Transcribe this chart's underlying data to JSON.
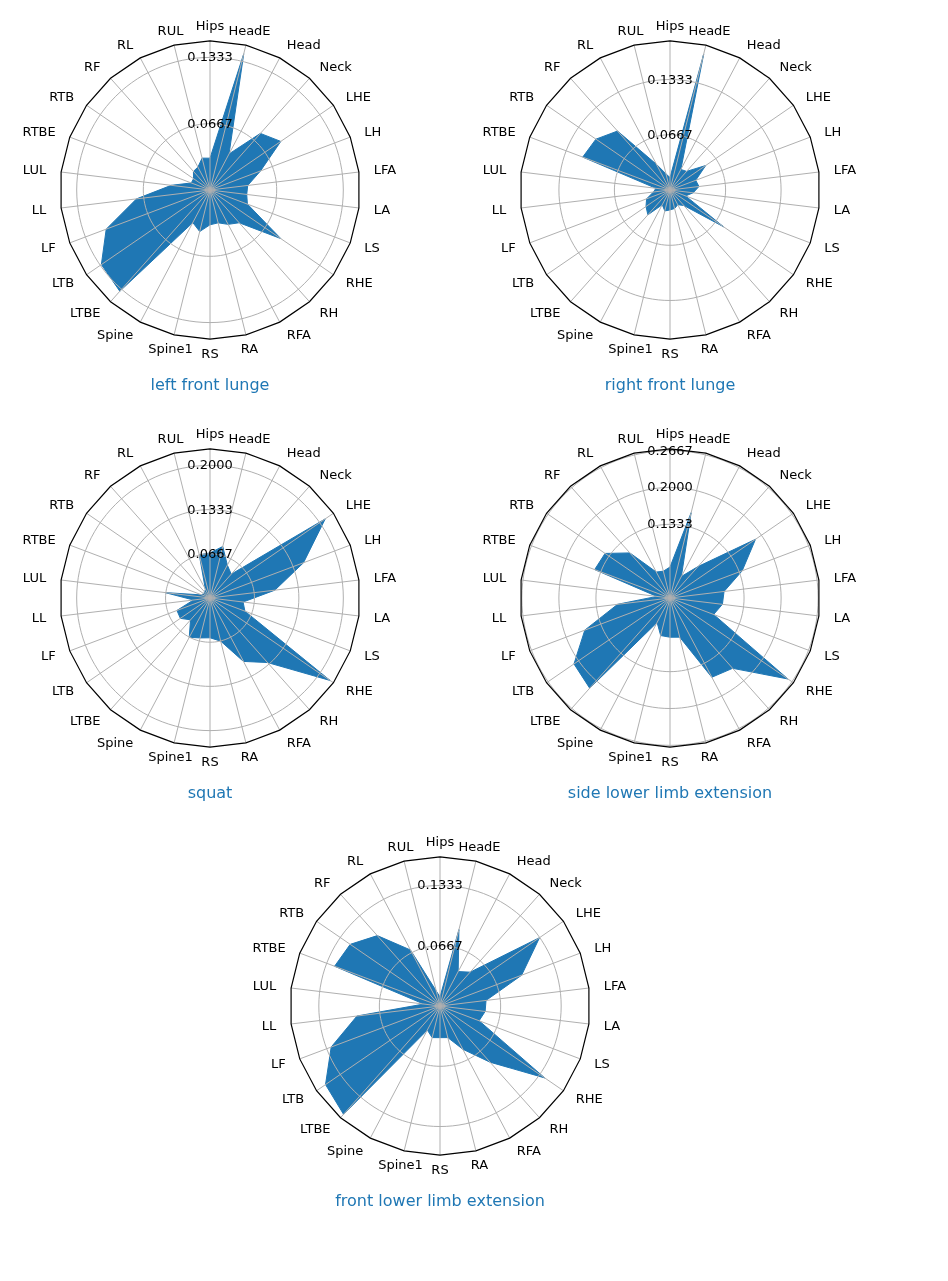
{
  "chart_data": [
    {
      "type": "radar",
      "title": "left front lunge",
      "categories": [
        "Hips",
        "HeadE",
        "Head",
        "Neck",
        "LHE",
        "LH",
        "LFA",
        "LA",
        "LS",
        "RHE",
        "RH",
        "RFA",
        "RA",
        "RS",
        "Spine1",
        "Spine",
        "LTBE",
        "LTB",
        "LF",
        "LL",
        "LUL",
        "RTBE",
        "RTB",
        "RF",
        "RL",
        "RUL"
      ],
      "series": [
        {
          "color": "#1f77b4",
          "values": [
            0.032,
            0.141,
            0.041,
            0.076,
            0.086,
            0.054,
            0.038,
            0.037,
            0.04,
            0.086,
            0.044,
            0.039,
            0.034,
            0.035,
            0.043,
            0.037,
            0.136,
            0.132,
            0.111,
            0.074,
            0.039,
            0.02,
            0.02,
            0.025,
            0.026,
            0.033
          ]
        }
      ],
      "ylim": [
        0,
        0.15
      ],
      "yticks": [
        0.0667,
        0.1333
      ],
      "grid": true
    },
    {
      "type": "radar",
      "title": "right front lunge",
      "categories": [
        "Hips",
        "HeadE",
        "Head",
        "Neck",
        "LHE",
        "LH",
        "LFA",
        "LA",
        "LS",
        "RHE",
        "RH",
        "RFA",
        "RA",
        "RS",
        "Spine1",
        "Spine",
        "LTBE",
        "LTB",
        "LF",
        "LL",
        "LUL",
        "RTBE",
        "RTB",
        "RF",
        "RL",
        "RUL"
      ],
      "series": [
        {
          "color": "#1f77b4",
          "values": [
            0.015,
            0.169,
            0.028,
            0.03,
            0.052,
            0.033,
            0.035,
            0.028,
            0.02,
            0.078,
            0.025,
            0.02,
            0.023,
            0.024,
            0.026,
            0.02,
            0.04,
            0.035,
            0.03,
            0.02,
            0.017,
            0.112,
            0.108,
            0.095,
            0.035,
            0.02
          ]
        }
      ],
      "ylim": [
        0,
        0.18
      ],
      "yticks": [
        0.0667,
        0.1333
      ],
      "grid": true
    },
    {
      "type": "radar",
      "title": "squat",
      "categories": [
        "Hips",
        "HeadE",
        "Head",
        "Neck",
        "LHE",
        "LH",
        "LFA",
        "LA",
        "LS",
        "RHE",
        "RH",
        "RFA",
        "RA",
        "RS",
        "Spine1",
        "Spine",
        "LTBE",
        "LTB",
        "LF",
        "LL",
        "LUL",
        "RTBE",
        "RTB",
        "RF",
        "RL",
        "RUL"
      ],
      "series": [
        {
          "color": "#1f77b4",
          "values": [
            0.068,
            0.08,
            0.056,
            0.048,
            0.21,
            0.15,
            0.098,
            0.05,
            0.056,
            0.219,
            0.13,
            0.108,
            0.067,
            0.06,
            0.062,
            0.067,
            0.044,
            0.054,
            0.053,
            0.025,
            0.068,
            0.013,
            0.012,
            0.012,
            0.015,
            0.067
          ]
        }
      ],
      "ylim": [
        0,
        0.225
      ],
      "yticks": [
        0.0667,
        0.1333,
        {
          "value": 0.2,
          "label": "0.2000"
        }
      ],
      "grid": true
    },
    {
      "type": "radar",
      "title": "side lower limb extension",
      "categories": [
        "Hips",
        "HeadE",
        "Head",
        "Neck",
        "LHE",
        "LH",
        "LFA",
        "LA",
        "LS",
        "RHE",
        "RH",
        "RFA",
        "RA",
        "RS",
        "Spine1",
        "Spine",
        "LTBE",
        "LTB",
        "LF",
        "LL",
        "LUL",
        "RTBE",
        "RTB",
        "RF",
        "RL",
        "RUL"
      ],
      "series": [
        {
          "color": "#1f77b4",
          "values": [
            0.056,
            0.159,
            0.044,
            0.076,
            0.187,
            0.139,
            0.098,
            0.095,
            0.084,
            0.258,
            0.17,
            0.162,
            0.073,
            0.071,
            0.07,
            0.05,
            0.218,
            0.21,
            0.164,
            0.095,
            0.024,
            0.145,
            0.142,
            0.109,
            0.053,
            0.05
          ]
        }
      ],
      "ylim": [
        0,
        0.27
      ],
      "yticks": [
        0.1333,
        {
          "value": 0.2,
          "label": "0.2000"
        },
        0.2667
      ],
      "grid": true
    },
    {
      "type": "radar",
      "title": "front lower limb extension",
      "categories": [
        "Hips",
        "HeadE",
        "Head",
        "Neck",
        "LHE",
        "LH",
        "LFA",
        "LA",
        "LS",
        "RHE",
        "RH",
        "RFA",
        "RA",
        "RS",
        "Spine1",
        "Spine",
        "LTBE",
        "LTB",
        "LF",
        "LL",
        "LUL",
        "RTBE",
        "RTB",
        "RF",
        "RL",
        "RUL"
      ],
      "series": [
        {
          "color": "#1f77b4",
          "values": [
            0.01,
            0.087,
            0.043,
            0.05,
            0.133,
            0.096,
            0.051,
            0.05,
            0.046,
            0.14,
            0.083,
            0.054,
            0.036,
            0.035,
            0.036,
            0.03,
            0.16,
            0.153,
            0.128,
            0.092,
            0.018,
            0.124,
            0.12,
            0.104,
            0.07,
            0.017
          ]
        }
      ],
      "ylim": [
        0,
        0.165
      ],
      "yticks": [
        0.0667,
        0.1333
      ],
      "grid": true
    }
  ]
}
